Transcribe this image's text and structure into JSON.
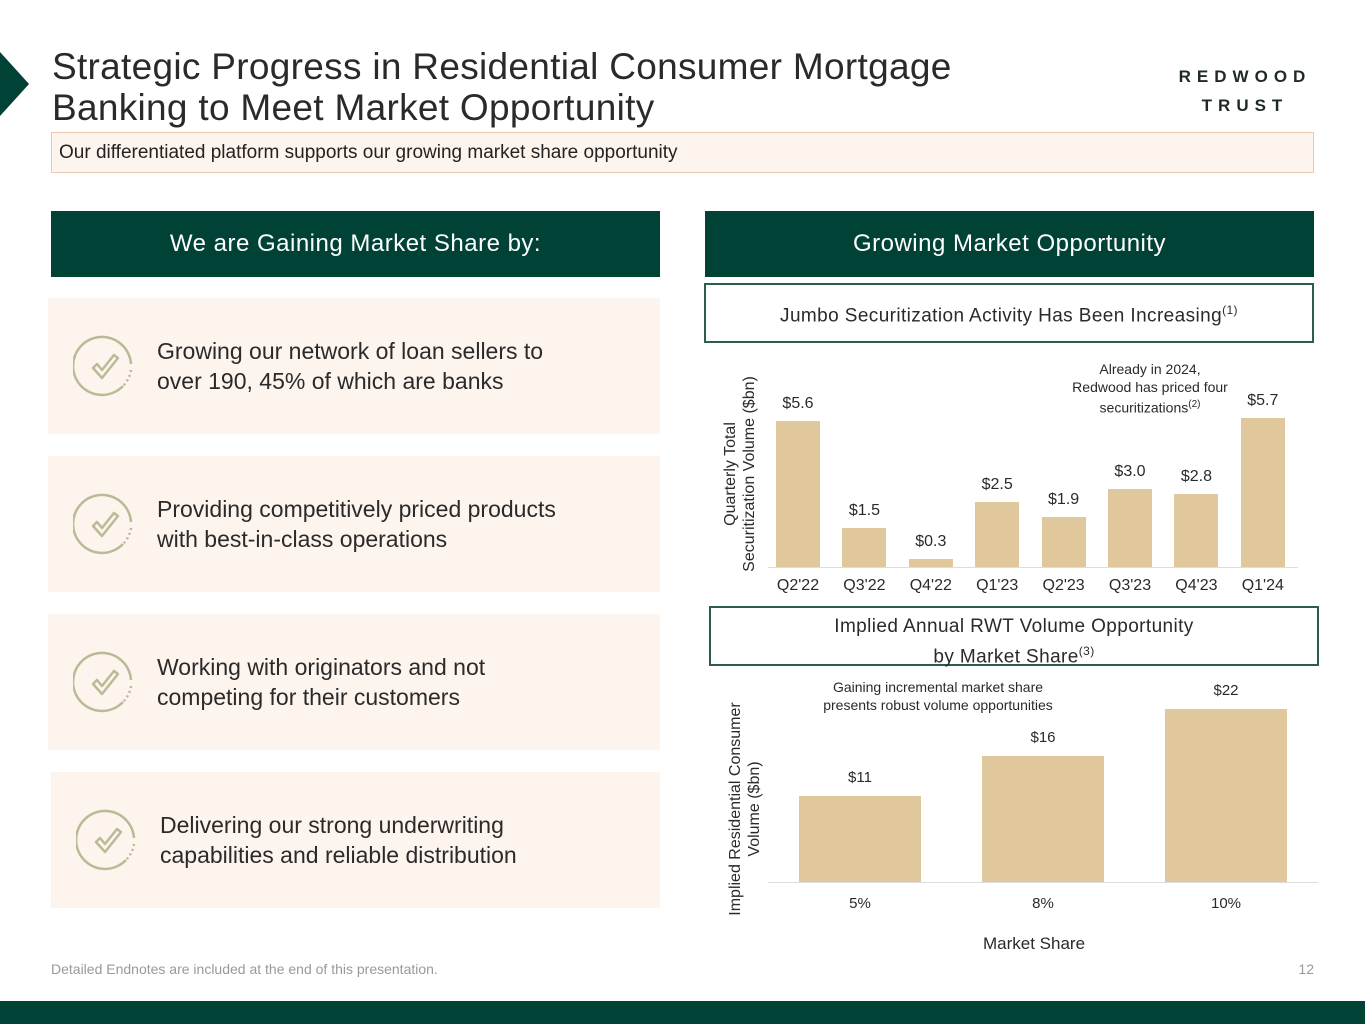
{
  "title_line1": "Strategic Progress in Residential Consumer Mortgage",
  "title_line2": "Banking to Meet Market Opportunity",
  "logo": {
    "line1": "REDWOOD",
    "line2": "TRUST"
  },
  "subtitle": "Our differentiated platform supports our growing market share opportunity",
  "left_header": "We are Gaining Market Share by:",
  "right_header": "Growing Market Opportunity",
  "cards": [
    {
      "line1": "Growing our network of loan sellers to",
      "line2": "over 190, 45% of which are banks"
    },
    {
      "line1": "Providing competitively priced products",
      "line2": "with best-in-class operations"
    },
    {
      "line1": "Working with originators and not",
      "line2": "competing for their customers"
    },
    {
      "line1": "Delivering our strong underwriting",
      "line2": "capabilities and reliable distribution"
    }
  ],
  "colors": {
    "brand": "#004236",
    "bar": "#e0c79c",
    "card": "#fdf4ee"
  },
  "chart_data": [
    {
      "type": "bar",
      "title": "Jumbo Securitization Activity Has Been Increasing",
      "title_sup": "(1)",
      "ylabel_line1": "Quarterly Total",
      "ylabel_line2": "Securitization Volume ($bn)",
      "categories": [
        "Q2'22",
        "Q3'22",
        "Q4'22",
        "Q1'23",
        "Q2'23",
        "Q3'23",
        "Q4'23",
        "Q1'24"
      ],
      "values": [
        5.6,
        1.5,
        0.3,
        2.5,
        1.9,
        3.0,
        2.8,
        5.7
      ],
      "labels": [
        "$5.6",
        "$1.5",
        "$0.3",
        "$2.5",
        "$1.9",
        "$3.0",
        "$2.8",
        "$5.7"
      ],
      "annotation": {
        "line1": "Already in 2024,",
        "line2": "Redwood has priced four",
        "line3": "securitizations",
        "sup": "(2)"
      }
    },
    {
      "type": "bar",
      "title_line1": "Implied Annual RWT Volume Opportunity",
      "title_line2": "by Market Share",
      "title_sup": "(3)",
      "ylabel_line1": "Implied Residential Consumer",
      "ylabel_line2": "Volume ($bn)",
      "xlabel": "Market Share",
      "categories": [
        "5%",
        "8%",
        "10%"
      ],
      "values": [
        11,
        16,
        22
      ],
      "labels": [
        "$11",
        "$16",
        "$22"
      ],
      "annotation": {
        "line1": "Gaining incremental market share",
        "line2": "presents robust volume opportunities"
      }
    }
  ],
  "footnote": "Detailed Endnotes are included at the end of this presentation.",
  "page_number": "12"
}
